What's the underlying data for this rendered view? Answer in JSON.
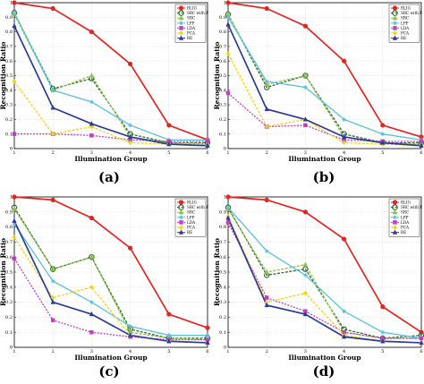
{
  "legend": [
    {
      "label": "RLIG",
      "color": "#e3241f",
      "marker": "circle",
      "dash": ""
    },
    {
      "label": "SRC with F",
      "color": "#2e6b2e",
      "marker": "circle-open",
      "dash": "3,1.5"
    },
    {
      "label": "SRC",
      "color": "#8bc34a",
      "marker": "triangle",
      "dash": "3,1.5"
    },
    {
      "label": "LPP",
      "color": "#5bc0de",
      "marker": "cross",
      "dash": ""
    },
    {
      "label": "LDA",
      "color": "#c040c0",
      "marker": "square",
      "dash": "2,1.5"
    },
    {
      "label": "PCA",
      "color": "#f5d312",
      "marker": "diamond",
      "dash": "3,1.5"
    },
    {
      "label": "RE",
      "color": "#2b3a9b",
      "marker": "triangle",
      "dash": ""
    }
  ],
  "chart_data": [
    {
      "type": "line",
      "caption": "(a)",
      "xlabel": "Illumination Group",
      "ylabel": "Recognition Ratio",
      "x": [
        1,
        2,
        3,
        4,
        5,
        6
      ],
      "xlim": [
        1,
        6
      ],
      "ylim": [
        0,
        1
      ],
      "yticks": [
        "0",
        "0.1",
        "0.2",
        "0.3",
        "0.4",
        "0.5",
        "0.6",
        "0.7",
        "0.8",
        "0.9",
        "1"
      ],
      "xticks": [
        "1",
        "2",
        "3",
        "4",
        "5",
        "6"
      ],
      "series": [
        {
          "name": "RLIG",
          "values": [
            1.0,
            0.96,
            0.8,
            0.58,
            0.16,
            0.06
          ]
        },
        {
          "name": "SRC with F",
          "values": [
            0.93,
            0.41,
            0.48,
            0.1,
            0.04,
            0.04
          ]
        },
        {
          "name": "SRC",
          "values": [
            0.92,
            0.4,
            0.5,
            0.08,
            0.04,
            0.03
          ]
        },
        {
          "name": "LPP",
          "values": [
            0.93,
            0.4,
            0.32,
            0.16,
            0.06,
            0.06
          ]
        },
        {
          "name": "LDA",
          "values": [
            0.1,
            0.1,
            0.09,
            0.06,
            0.05,
            0.05
          ]
        },
        {
          "name": "PCA",
          "values": [
            0.46,
            0.1,
            0.15,
            0.04,
            0.03,
            0.02
          ]
        },
        {
          "name": "RE",
          "values": [
            0.84,
            0.28,
            0.17,
            0.08,
            0.03,
            0.02
          ]
        }
      ]
    },
    {
      "type": "line",
      "caption": "(b)",
      "xlabel": "Illumination Group",
      "ylabel": "Recognition Ratio",
      "x": [
        1,
        2,
        3,
        4,
        5,
        6
      ],
      "xlim": [
        1,
        6
      ],
      "ylim": [
        0,
        1
      ],
      "yticks": [
        "0",
        "0.1",
        "0.2",
        "0.3",
        "0.4",
        "0.5",
        "0.6",
        "0.7",
        "0.8",
        "0.9",
        "1"
      ],
      "xticks": [
        "1",
        "2",
        "3",
        "4",
        "5",
        "6"
      ],
      "series": [
        {
          "name": "RLIG",
          "values": [
            1.0,
            0.96,
            0.84,
            0.6,
            0.16,
            0.08
          ]
        },
        {
          "name": "SRC with F",
          "values": [
            0.92,
            0.42,
            0.5,
            0.1,
            0.04,
            0.04
          ]
        },
        {
          "name": "SRC",
          "values": [
            0.92,
            0.44,
            0.5,
            0.08,
            0.04,
            0.03
          ]
        },
        {
          "name": "LPP",
          "values": [
            0.9,
            0.46,
            0.42,
            0.2,
            0.1,
            0.06
          ]
        },
        {
          "name": "LDA",
          "values": [
            0.38,
            0.15,
            0.16,
            0.06,
            0.05,
            0.05
          ]
        },
        {
          "name": "PCA",
          "values": [
            0.65,
            0.15,
            0.2,
            0.04,
            0.03,
            0.02
          ]
        },
        {
          "name": "RE",
          "values": [
            0.85,
            0.27,
            0.2,
            0.08,
            0.04,
            0.02
          ]
        }
      ]
    },
    {
      "type": "line",
      "caption": "(c)",
      "xlabel": "Illumination Group",
      "ylabel": "Recognition Ratio",
      "x": [
        1,
        2,
        3,
        4,
        5,
        6
      ],
      "xlim": [
        1,
        6
      ],
      "ylim": [
        0,
        1
      ],
      "yticks": [
        "0",
        "0.1",
        "0.2",
        "0.3",
        "0.4",
        "0.5",
        "0.6",
        "0.7",
        "0.8",
        "0.9",
        "1"
      ],
      "xticks": [
        "1",
        "2",
        "3",
        "4",
        "5",
        "6"
      ],
      "series": [
        {
          "name": "RLIG",
          "values": [
            1.0,
            0.98,
            0.86,
            0.66,
            0.22,
            0.13
          ]
        },
        {
          "name": "SRC with F",
          "values": [
            0.93,
            0.52,
            0.6,
            0.12,
            0.06,
            0.06
          ]
        },
        {
          "name": "SRC",
          "values": [
            0.92,
            0.52,
            0.6,
            0.1,
            0.06,
            0.05
          ]
        },
        {
          "name": "LPP",
          "values": [
            0.82,
            0.44,
            0.3,
            0.14,
            0.08,
            0.08
          ]
        },
        {
          "name": "LDA",
          "values": [
            0.59,
            0.18,
            0.1,
            0.07,
            0.05,
            0.05
          ]
        },
        {
          "name": "PCA",
          "values": [
            0.73,
            0.33,
            0.4,
            0.08,
            0.04,
            0.03
          ]
        },
        {
          "name": "RE",
          "values": [
            0.84,
            0.3,
            0.22,
            0.08,
            0.04,
            0.03
          ]
        }
      ]
    },
    {
      "type": "line",
      "caption": "(d)",
      "xlabel": "Illumination Group",
      "ylabel": "Recognition Ratio",
      "x": [
        1,
        2,
        3,
        4,
        5,
        6
      ],
      "xlim": [
        1,
        6
      ],
      "ylim": [
        0,
        1
      ],
      "yticks": [
        "0",
        "0.1",
        "0.2",
        "0.3",
        "0.4",
        "0.5",
        "0.6",
        "0.7",
        "0.8",
        "0.9",
        "1"
      ],
      "xticks": [
        "1",
        "2",
        "3",
        "4",
        "5",
        "6"
      ],
      "series": [
        {
          "name": "RLIG",
          "values": [
            1.0,
            0.98,
            0.9,
            0.72,
            0.27,
            0.1
          ]
        },
        {
          "name": "SRC with F",
          "values": [
            0.93,
            0.48,
            0.52,
            0.12,
            0.06,
            0.08
          ]
        },
        {
          "name": "SRC",
          "values": [
            0.92,
            0.5,
            0.55,
            0.1,
            0.06,
            0.06
          ]
        },
        {
          "name": "LPP",
          "values": [
            0.93,
            0.64,
            0.48,
            0.24,
            0.1,
            0.06
          ]
        },
        {
          "name": "LDA",
          "values": [
            0.83,
            0.33,
            0.24,
            0.1,
            0.06,
            0.06
          ]
        },
        {
          "name": "PCA",
          "values": [
            0.87,
            0.3,
            0.36,
            0.08,
            0.04,
            0.03
          ]
        },
        {
          "name": "RE",
          "values": [
            0.86,
            0.28,
            0.22,
            0.07,
            0.04,
            0.03
          ]
        }
      ]
    }
  ]
}
